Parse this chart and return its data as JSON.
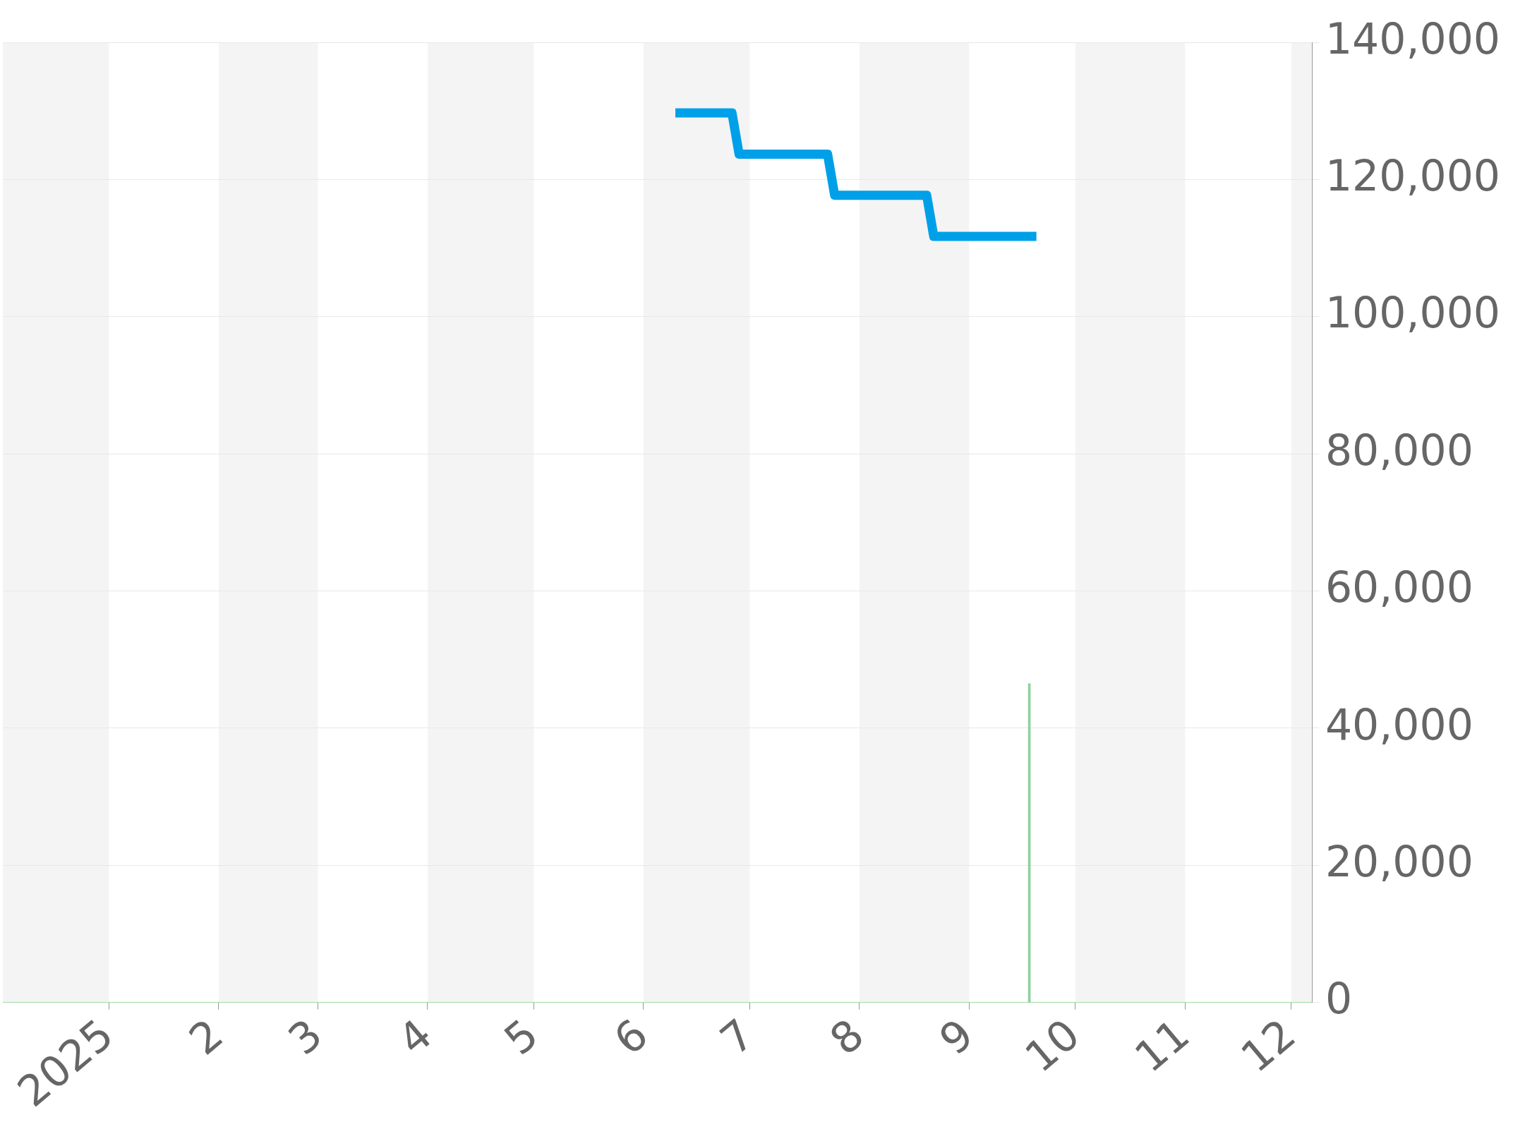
{
  "chart_data": {
    "type": "line",
    "x": [
      "2025-06-10",
      "2025-06-26",
      "2025-06-28",
      "2025-07-23",
      "2025-07-25",
      "2025-08-20",
      "2025-08-22",
      "2025-09-20"
    ],
    "series": [
      {
        "color": "#00a0e9",
        "values": [
          129700,
          129700,
          123700,
          123700,
          117700,
          117700,
          111700,
          111700
        ]
      },
      {
        "type": "bar",
        "color": "#8fd19e",
        "x": [
          "2025-09-18"
        ],
        "values": [
          46500
        ]
      }
    ],
    "xlim": [
      "2024-12-02",
      "2025-12-07"
    ],
    "xticks": [
      {
        "value": "2025-01-01",
        "label": "2025"
      },
      {
        "value": "2025-02-01",
        "label": "2"
      },
      {
        "value": "2025-03-01",
        "label": "3"
      },
      {
        "value": "2025-04-01",
        "label": "4"
      },
      {
        "value": "2025-05-01",
        "label": "5"
      },
      {
        "value": "2025-06-01",
        "label": "6"
      },
      {
        "value": "2025-07-01",
        "label": "7"
      },
      {
        "value": "2025-08-01",
        "label": "8"
      },
      {
        "value": "2025-09-01",
        "label": "9"
      },
      {
        "value": "2025-10-01",
        "label": "10"
      },
      {
        "value": "2025-11-01",
        "label": "11"
      },
      {
        "value": "2025-12-01",
        "label": "12"
      }
    ],
    "ylim": [
      0,
      140000
    ],
    "yticks": [
      {
        "value": 0,
        "label": "0"
      },
      {
        "value": 20000,
        "label": "20,000"
      },
      {
        "value": 40000,
        "label": "40,000"
      },
      {
        "value": 60000,
        "label": "60,000"
      },
      {
        "value": 80000,
        "label": "80,000"
      },
      {
        "value": 100000,
        "label": "100,000"
      },
      {
        "value": 120000,
        "label": "120,000"
      },
      {
        "value": 140000,
        "label": "140,000"
      }
    ],
    "bands": [
      {
        "axis": "x",
        "from": "2024-12-02",
        "to": "2025-01-01",
        "color": "#f4f4f4"
      },
      {
        "axis": "x",
        "from": "2025-02-01",
        "to": "2025-03-01",
        "color": "#f4f4f4"
      },
      {
        "axis": "x",
        "from": "2025-04-01",
        "to": "2025-05-01",
        "color": "#f4f4f4"
      },
      {
        "axis": "x",
        "from": "2025-06-01",
        "to": "2025-07-01",
        "color": "#f4f4f4"
      },
      {
        "axis": "x",
        "from": "2025-08-01",
        "to": "2025-09-01",
        "color": "#f4f4f4"
      },
      {
        "axis": "x",
        "from": "2025-10-01",
        "to": "2025-11-01",
        "color": "#f4f4f4"
      },
      {
        "axis": "x",
        "from": "2025-12-01",
        "to": "2025-12-07",
        "color": "#f4f4f4"
      }
    ],
    "grid": "y",
    "legend": false,
    "marker": "none",
    "line_style": "solid"
  }
}
